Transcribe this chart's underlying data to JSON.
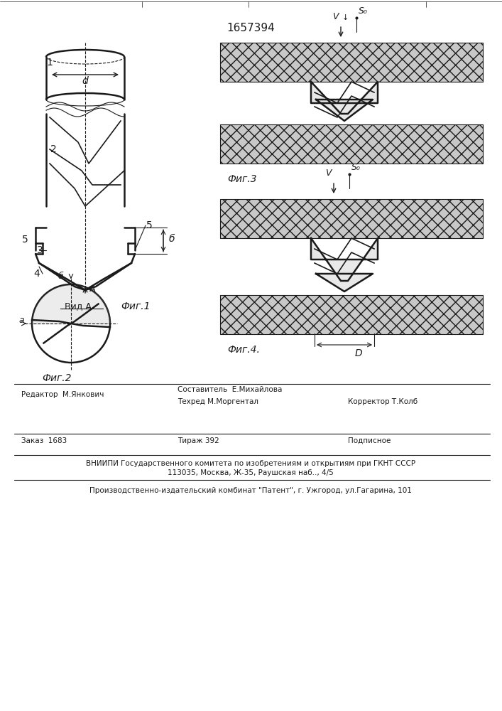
{
  "patent_number": "1657394",
  "background_color": "#ffffff",
  "line_color": "#1a1a1a",
  "fig_width": 7.07,
  "fig_height": 10.0,
  "footer_lines": [
    "Составитель  Е.Михайлова",
    "Техред М.Моргентал",
    "Корректор Т.Колб",
    "Редактор  М.Янкович",
    "Заказ  1683",
    "Тираж 392",
    "Подписное",
    "ВНИИПИ Государственного комитета по изобретениям и открытиям при ГКНТ СССР",
    "113035, Москва, Ж-35, Раушская наб.., 4/5",
    "Производственно-издательский комбинат \"Патент\", г. Ужгород, ул.Гагарина, 101"
  ]
}
